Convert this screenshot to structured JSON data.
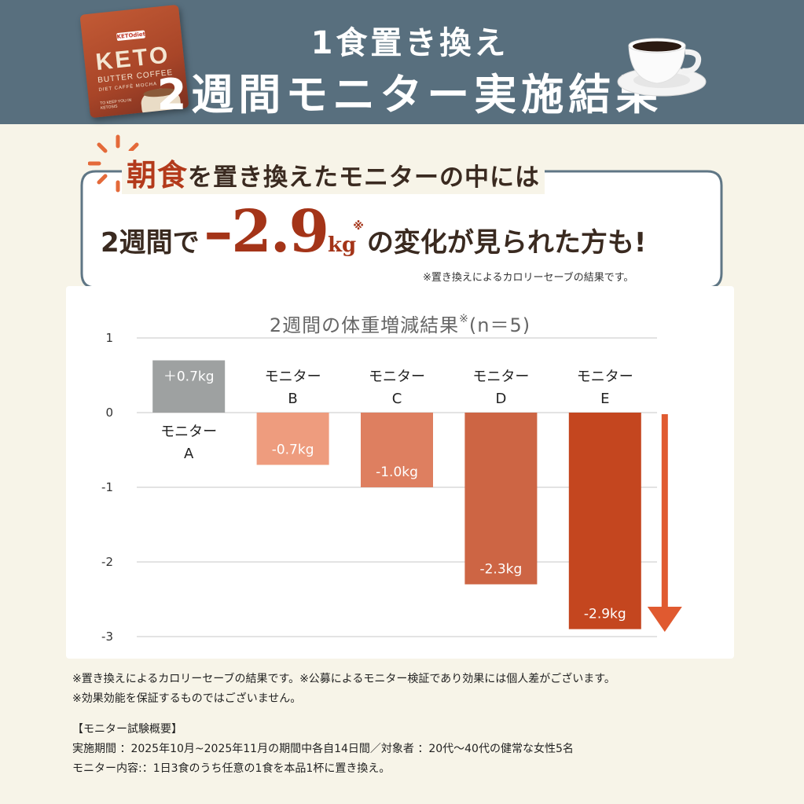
{
  "header": {
    "line1": "1食置き換え",
    "line2": "2週間モニター実施結果",
    "product": {
      "brand": "KETOdiet",
      "name": "KETO",
      "line1": "BUTTER COFFEE",
      "line2": "DIET CAFFÈ MOCHA",
      "line3": "TO KEEP YOU IN KETOSIS"
    }
  },
  "bubble": {
    "top_accent": "朝食",
    "top_rest": "を置き換えたモニターの中には",
    "main_pre": "2週間で",
    "main_value": "–2.9",
    "main_unit": "kg",
    "main_mark": "※",
    "main_post": "の変化が見られた方も!",
    "note": "※置き換えによるカロリーセーブの結果です。"
  },
  "chart_data": {
    "type": "bar",
    "title": "2週間の体重増減結果",
    "title_mark": "※",
    "title_n": "(n＝5)",
    "categories": [
      "モニター\nA",
      "モニター\nB",
      "モニター\nC",
      "モニター\nD",
      "モニター\nE"
    ],
    "values": [
      0.7,
      -0.7,
      -1.0,
      -2.3,
      -2.9
    ],
    "data_labels": [
      "＋0.7kg",
      "-0.7kg",
      "-1.0kg",
      "-2.3kg",
      "-2.9kg"
    ],
    "ylim": [
      -3,
      1
    ],
    "yticks": [
      "1",
      "0",
      "-1",
      "-2",
      "-3"
    ],
    "grid": true,
    "colors": [
      "#9ea1a1",
      "#ee9c7e",
      "#de7f60",
      "#cd6544",
      "#c4461f"
    ],
    "arrow_color": "#e05a30"
  },
  "notes": {
    "line1": "※置き換えによるカロリーセーブの結果です。※公募によるモニター検証であり効果には個人差がございます。",
    "line2": "※効果効能を保証するものではございません。"
  },
  "overview": {
    "heading": "【モニター試験概要】",
    "period": "実施期間 ：2025年10月~2025年11月の期間中各自14日間／対象者 ：20代〜40代の健常な女性5名",
    "content": "モニター内容:：1日3食のうち任意の1食を本品1杯に置き換え。"
  }
}
